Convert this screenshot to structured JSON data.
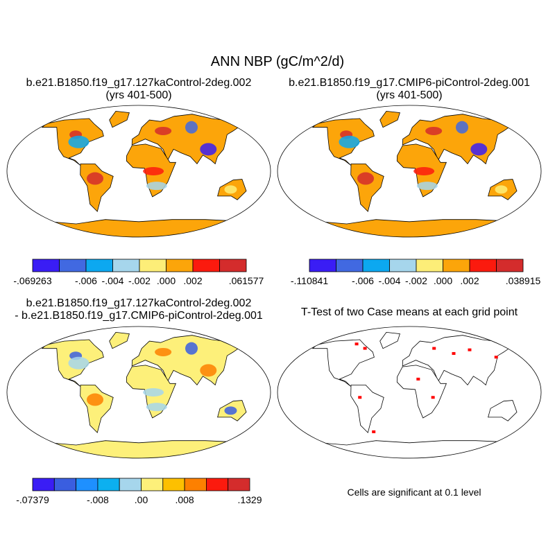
{
  "title": "ANN NBP (gC/m^2/d)",
  "panels": [
    {
      "title_lines": [
        "b.e21.B1850.f19_g17.127kaControl-2deg.002",
        "(yrs 401-500)"
      ],
      "land_color": "#fca50a",
      "colorbar": {
        "colors": [
          "#3a1df5",
          "#4169e1",
          "#0ca8f0",
          "#a6d6ec",
          "#fdee78",
          "#fca50a",
          "#fb1a0e",
          "#d42c2c"
        ],
        "labels": [
          "-.069263",
          "-.006",
          "-.004",
          "-.002",
          ".000",
          ".002",
          ".061577"
        ]
      }
    },
    {
      "title_lines": [
        "b.e21.B1850.f19_g17.CMIP6-piControl-2deg.001",
        "(yrs 401-500)"
      ],
      "land_color": "#fca50a",
      "colorbar": {
        "colors": [
          "#3a1df5",
          "#4169e1",
          "#0ca8f0",
          "#a6d6ec",
          "#fdee78",
          "#fca50a",
          "#fb1a0e",
          "#d42c2c"
        ],
        "labels": [
          "-.110841",
          "-.006",
          "-.004",
          "-.002",
          ".000",
          ".002",
          ".038915"
        ]
      }
    },
    {
      "title_lines": [
        "b.e21.B1850.f19_g17.127kaControl-2deg.002",
        "- b.e21.B1850.f19_g17.CMIP6-piControl-2deg.001"
      ],
      "land_color": "#fdf07a",
      "colorbar": {
        "colors": [
          "#3a1df5",
          "#3a5ee0",
          "#1e90ff",
          "#0cb0f0",
          "#a6d6ec",
          "#fdf07a",
          "#fdc000",
          "#fd8000",
          "#fb1a0e",
          "#d42c2c"
        ],
        "labels": [
          "-.07379",
          "-.008",
          ".00",
          ".008",
          ".1329"
        ]
      }
    },
    {
      "title_lines": [
        "T-Test of two Case means at each grid point"
      ],
      "land_color": "#ffffff",
      "note": "Cells are significant at 0.1 level"
    }
  ]
}
